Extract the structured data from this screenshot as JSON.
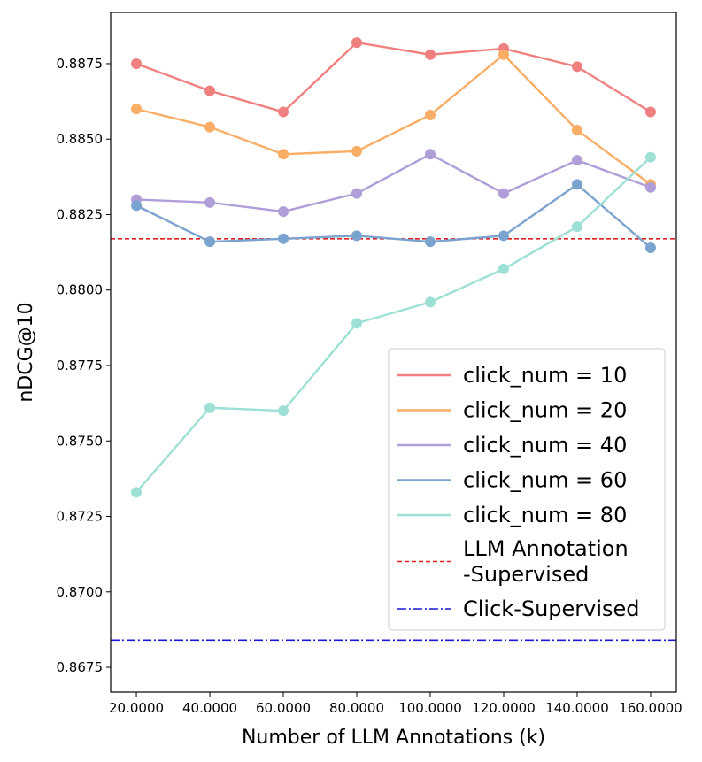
{
  "chart_data": {
    "type": "line",
    "xlabel": "Number of LLM Annotations (k)",
    "ylabel": "nDCG@10",
    "x": [
      20,
      40,
      60,
      80,
      100,
      120,
      140,
      160
    ],
    "x_tick_labels": [
      "20.0000",
      "40.0000",
      "60.0000",
      "80.0000",
      "100.0000",
      "120.0000",
      "140.0000",
      "160.0000"
    ],
    "y_ticks": [
      0.8675,
      0.87,
      0.8725,
      0.875,
      0.8775,
      0.88,
      0.8825,
      0.885,
      0.8875
    ],
    "y_tick_labels": [
      "0.8675",
      "0.8700",
      "0.8725",
      "0.8750",
      "0.8775",
      "0.8800",
      "0.8825",
      "0.8850",
      "0.8875"
    ],
    "xlim": [
      13,
      167
    ],
    "ylim": [
      0.86668,
      0.8892
    ],
    "grid": false,
    "legend_position": "lower-right",
    "series": [
      {
        "name": "click_num = 10",
        "color": "#f08080",
        "values": [
          0.8875,
          0.8866,
          0.8859,
          0.8882,
          0.8878,
          0.888,
          0.8874,
          0.8859
        ]
      },
      {
        "name": "click_num = 20",
        "color": "#f9ad65",
        "values": [
          0.886,
          0.8854,
          0.8845,
          0.8846,
          0.8858,
          0.8878,
          0.8853,
          0.8835
        ]
      },
      {
        "name": "click_num = 40",
        "color": "#b09ed9",
        "values": [
          0.883,
          0.8829,
          0.8826,
          0.8832,
          0.8845,
          0.8832,
          0.8843,
          0.8834
        ]
      },
      {
        "name": "click_num = 60",
        "color": "#7aa3cf",
        "values": [
          0.8828,
          0.8816,
          0.8817,
          0.8818,
          0.8816,
          0.8818,
          0.8835,
          0.8814
        ]
      },
      {
        "name": "click_num = 80",
        "color": "#9de0d5",
        "values": [
          0.8733,
          0.8761,
          0.876,
          0.8789,
          0.8796,
          0.8807,
          0.8821,
          0.8844
        ]
      }
    ],
    "reference_lines": [
      {
        "name": "LLM Annotation\n-Supervised",
        "name_lines": [
          "LLM Annotation",
          "-Supervised"
        ],
        "color": "#e02020",
        "style": "dashed",
        "value": 0.8817
      },
      {
        "name": "Click-Supervised",
        "name_lines": [
          "Click-Supervised"
        ],
        "color": "#1a1ad6",
        "style": "dashdot",
        "value": 0.8684
      }
    ]
  }
}
